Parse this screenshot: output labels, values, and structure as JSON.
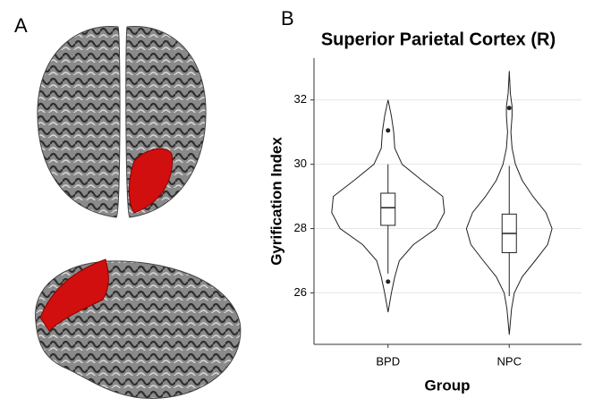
{
  "panel_labels": [
    "A",
    "B"
  ],
  "chart_data": {
    "type": "violin",
    "title": "Superior Parietal Cortex (R)",
    "x_label": "Group",
    "y_label": "Gyrification Index",
    "categories": [
      "BPD",
      "NPC"
    ],
    "ylim": [
      24.4,
      33.3
    ],
    "yticks": [
      26,
      28,
      30,
      32
    ],
    "grid": true,
    "series": [
      {
        "name": "BPD",
        "median": 28.65,
        "q1": 28.1,
        "q3": 29.1,
        "whisker_low": 26.6,
        "whisker_high": 30.0,
        "outliers": [
          31.05,
          26.35
        ],
        "density_y": [
          25.4,
          26,
          26.5,
          27,
          27.5,
          28,
          28.5,
          29,
          29.5,
          30,
          30.5,
          31,
          31.5,
          32
        ],
        "density": [
          0,
          0.06,
          0.12,
          0.2,
          0.45,
          0.85,
          1.0,
          0.97,
          0.6,
          0.25,
          0.12,
          0.1,
          0.06,
          0
        ]
      },
      {
        "name": "NPC",
        "median": 27.85,
        "q1": 27.25,
        "q3": 28.45,
        "whisker_low": 25.9,
        "whisker_high": 29.95,
        "outliers": [
          31.75
        ],
        "density_y": [
          24.7,
          25.5,
          26,
          26.5,
          27,
          27.5,
          28,
          28.5,
          29,
          29.5,
          30,
          30.5,
          31,
          31.5,
          31.8,
          32.2,
          32.9
        ],
        "density": [
          0,
          0.04,
          0.09,
          0.23,
          0.46,
          0.68,
          0.76,
          0.65,
          0.42,
          0.23,
          0.11,
          0.05,
          0.03,
          0.05,
          0.05,
          0.02,
          0
        ]
      }
    ]
  }
}
